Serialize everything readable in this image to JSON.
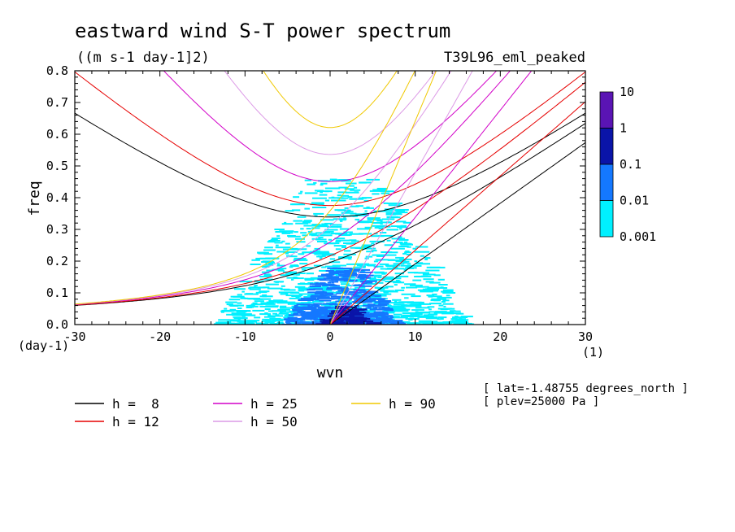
{
  "chart_data": {
    "type": "heatmap",
    "title": "eastward wind S-T power spectrum",
    "subtitle": "((m s-1 day-1]2)",
    "run_label": "T39L96_eml_peaked",
    "xlabel": "wvn",
    "ylabel": "freq",
    "x_unit_label": "(1)",
    "y_unit_label": "(day-1)",
    "xlim": [
      -30,
      30
    ],
    "ylim": [
      0,
      0.8
    ],
    "x_ticks": [
      "-30",
      "-20",
      "-10",
      "0",
      "10",
      "20",
      "30"
    ],
    "y_ticks": [
      "0.0",
      "0.1",
      "0.2",
      "0.3",
      "0.4",
      "0.5",
      "0.6",
      "0.7",
      "0.8"
    ],
    "colorbar": {
      "levels": [
        "10",
        "1",
        "0.1",
        "0.01",
        "0.001"
      ],
      "colors": [
        "#5a14b4",
        "#0a14a8",
        "#1478ff",
        "#00f0ff"
      ]
    },
    "dispersion_curves": [
      {
        "name": "h =  8",
        "h": 8,
        "color": "#000000"
      },
      {
        "name": "h = 12",
        "h": 12,
        "color": "#e60000"
      },
      {
        "name": "h = 25",
        "h": 25,
        "color": "#d200c8"
      },
      {
        "name": "h = 50",
        "h": 50,
        "color": "#dc9ae6"
      },
      {
        "name": "h = 90",
        "h": 90,
        "color": "#f0c800"
      }
    ],
    "spectrum_regions": [
      {
        "level": "0.001-0.01",
        "x_range": [
          -14,
          16
        ],
        "y_range": [
          0.0,
          0.46
        ]
      },
      {
        "level": "0.01-0.1",
        "x_range": [
          -6,
          8
        ],
        "y_range": [
          0.0,
          0.18
        ]
      },
      {
        "level": "0.1-1",
        "x_range": [
          -2,
          5
        ],
        "y_range": [
          0.0,
          0.06
        ]
      }
    ],
    "annotations": [
      "[ lat=-1.48755 degrees_north ]",
      "[ plev=25000 Pa ]"
    ],
    "grid": false,
    "legend_position": "bottom"
  }
}
